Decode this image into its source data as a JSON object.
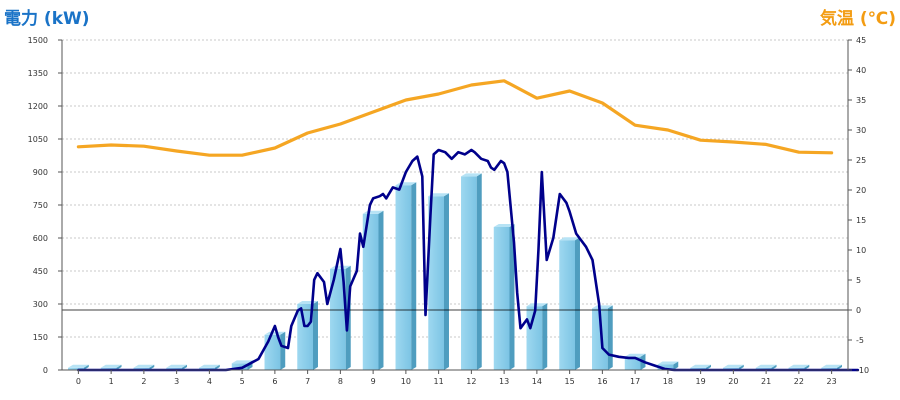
{
  "chart_data": {
    "type": "bar",
    "title": "",
    "left_axis": {
      "label": "電力 (kW)",
      "ylim": [
        0,
        1500
      ],
      "ticks": [
        "0",
        "150",
        "300",
        "450",
        "600",
        "750",
        "900",
        "1050",
        "1200",
        "1350",
        "1500"
      ]
    },
    "right_axis": {
      "label": "気温 (℃)",
      "ylim": [
        -10,
        45
      ],
      "ticks": [
        "-10",
        "-5",
        "0",
        "5",
        "10",
        "15",
        "20",
        "25",
        "30",
        "35",
        "40",
        "45"
      ]
    },
    "categories": [
      "0",
      "1",
      "2",
      "3",
      "4",
      "5",
      "6",
      "7",
      "8",
      "9",
      "10",
      "11",
      "12",
      "13",
      "14",
      "15",
      "16",
      "17",
      "18",
      "19",
      "20",
      "21",
      "22",
      "23"
    ],
    "grid": true,
    "series": [
      {
        "type": "bar",
        "axis": "left",
        "color": "#87ceeb",
        "values": [
          10,
          10,
          10,
          10,
          10,
          30,
          160,
          300,
          460,
          710,
          840,
          790,
          880,
          650,
          290,
          590,
          280,
          60,
          25,
          10,
          10,
          10,
          10,
          10
        ]
      },
      {
        "type": "line",
        "axis": "left",
        "color": "#00008b",
        "points": [
          [
            0,
            0
          ],
          [
            4.5,
            0
          ],
          [
            5.0,
            10
          ],
          [
            5.5,
            50
          ],
          [
            5.8,
            130
          ],
          [
            6.0,
            200
          ],
          [
            6.1,
            150
          ],
          [
            6.2,
            110
          ],
          [
            6.4,
            100
          ],
          [
            6.5,
            200
          ],
          [
            6.7,
            270
          ],
          [
            6.8,
            280
          ],
          [
            6.9,
            200
          ],
          [
            7.0,
            200
          ],
          [
            7.1,
            220
          ],
          [
            7.2,
            410
          ],
          [
            7.3,
            440
          ],
          [
            7.5,
            400
          ],
          [
            7.6,
            300
          ],
          [
            7.8,
            410
          ],
          [
            8.0,
            550
          ],
          [
            8.1,
            400
          ],
          [
            8.2,
            180
          ],
          [
            8.3,
            380
          ],
          [
            8.5,
            450
          ],
          [
            8.6,
            620
          ],
          [
            8.7,
            560
          ],
          [
            8.9,
            750
          ],
          [
            9.0,
            780
          ],
          [
            9.2,
            790
          ],
          [
            9.3,
            800
          ],
          [
            9.4,
            780
          ],
          [
            9.6,
            830
          ],
          [
            9.8,
            820
          ],
          [
            10.0,
            900
          ],
          [
            10.2,
            950
          ],
          [
            10.35,
            970
          ],
          [
            10.5,
            880
          ],
          [
            10.6,
            250
          ],
          [
            10.75,
            700
          ],
          [
            10.85,
            980
          ],
          [
            11.0,
            1000
          ],
          [
            11.2,
            990
          ],
          [
            11.4,
            960
          ],
          [
            11.6,
            990
          ],
          [
            11.8,
            980
          ],
          [
            12.0,
            1000
          ],
          [
            12.1,
            990
          ],
          [
            12.3,
            960
          ],
          [
            12.5,
            950
          ],
          [
            12.6,
            920
          ],
          [
            12.7,
            910
          ],
          [
            12.9,
            950
          ],
          [
            13.0,
            940
          ],
          [
            13.1,
            900
          ],
          [
            13.3,
            580
          ],
          [
            13.4,
            350
          ],
          [
            13.5,
            190
          ],
          [
            13.7,
            230
          ],
          [
            13.8,
            190
          ],
          [
            13.95,
            270
          ],
          [
            14.05,
            550
          ],
          [
            14.15,
            900
          ],
          [
            14.3,
            500
          ],
          [
            14.5,
            600
          ],
          [
            14.7,
            800
          ],
          [
            14.9,
            760
          ],
          [
            15.0,
            720
          ],
          [
            15.2,
            620
          ],
          [
            15.5,
            560
          ],
          [
            15.7,
            500
          ],
          [
            15.9,
            300
          ],
          [
            16.0,
            100
          ],
          [
            16.2,
            70
          ],
          [
            16.5,
            60
          ],
          [
            16.8,
            55
          ],
          [
            17.0,
            55
          ],
          [
            17.3,
            35
          ],
          [
            17.6,
            20
          ],
          [
            17.9,
            5
          ],
          [
            18.2,
            0
          ],
          [
            23.8,
            0
          ]
        ]
      },
      {
        "type": "line",
        "axis": "right",
        "color": "#f5a623",
        "points": [
          [
            0,
            27.2
          ],
          [
            1,
            27.5
          ],
          [
            2,
            27.3
          ],
          [
            3,
            26.5
          ],
          [
            4,
            25.8
          ],
          [
            5,
            25.8
          ],
          [
            6,
            27.0
          ],
          [
            7,
            29.5
          ],
          [
            8,
            31.0
          ],
          [
            9,
            33.0
          ],
          [
            10,
            35.0
          ],
          [
            11,
            36.0
          ],
          [
            12,
            37.5
          ],
          [
            13,
            38.2
          ],
          [
            14,
            35.3
          ],
          [
            15,
            36.5
          ],
          [
            16,
            34.5
          ],
          [
            17,
            30.8
          ],
          [
            18,
            30.0
          ],
          [
            19,
            28.3
          ],
          [
            20,
            28.0
          ],
          [
            21,
            27.6
          ],
          [
            22,
            26.3
          ],
          [
            23,
            26.2
          ]
        ]
      }
    ],
    "reference_line_right": 0
  }
}
